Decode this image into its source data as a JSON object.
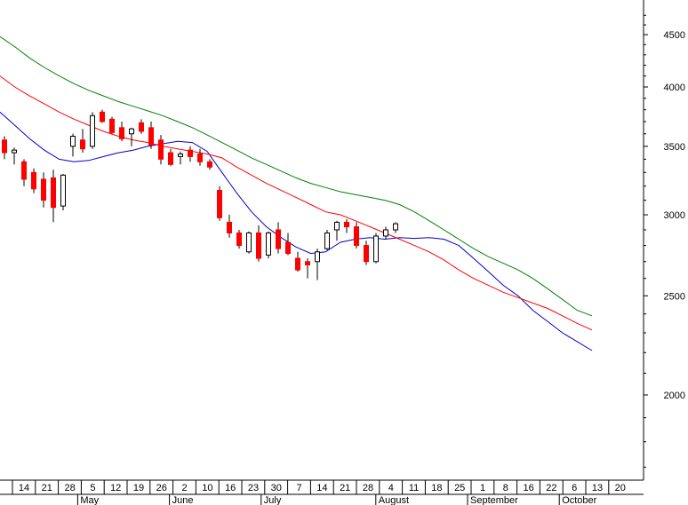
{
  "chart_data": {
    "type": "candlestick",
    "y_axis": {
      "position": "right",
      "scale": "log",
      "ticks": [
        2000,
        2500,
        3000,
        3500,
        4000,
        4500
      ],
      "tick_labels": [
        "2000",
        "2500",
        "3000",
        "3500",
        "4000",
        "4500"
      ],
      "range": [
        1650,
        4800
      ]
    },
    "x_axis": {
      "day_labels": [
        "14",
        "21",
        "28",
        "5",
        "12",
        "19",
        "26",
        "2",
        "10",
        "16",
        "23",
        "30",
        "7",
        "14",
        "21",
        "28",
        "4",
        "11",
        "18",
        "25",
        "1",
        "8",
        "16",
        "22",
        "6",
        "13",
        "20"
      ],
      "month_labels": [
        "May",
        "June",
        "July",
        "August",
        "September",
        "October"
      ],
      "month_label_tick_index": [
        3,
        7,
        11,
        16,
        20,
        24
      ]
    },
    "colors": {
      "up_candle": "#ffffff",
      "down_candle": "#ff0000",
      "ma_short": "#0000cc",
      "ma_mid": "#ff0000",
      "ma_long": "#008000"
    },
    "moving_averages": [
      {
        "color_key": "ma_short",
        "values": [
          3780,
          3670,
          3560,
          3470,
          3400,
          3380,
          3390,
          3420,
          3450,
          3470,
          3500,
          3520,
          3540,
          3530,
          3460,
          3300,
          3150,
          3020,
          2920,
          2850,
          2790,
          2750,
          2760,
          2820,
          2840,
          2850,
          2840,
          2850,
          2845,
          2850,
          2840,
          2800,
          2720,
          2640,
          2560,
          2500,
          2420,
          2360,
          2300,
          2255,
          2210
        ]
      },
      {
        "color_key": "ma_mid",
        "values": [
          4100,
          4000,
          3920,
          3850,
          3780,
          3720,
          3670,
          3620,
          3580,
          3550,
          3530,
          3500,
          3480,
          3460,
          3440,
          3410,
          3340,
          3280,
          3220,
          3170,
          3120,
          3070,
          3020,
          3000,
          2960,
          2920,
          2880,
          2840,
          2800,
          2760,
          2710,
          2650,
          2600,
          2560,
          2520,
          2490,
          2460,
          2430,
          2390,
          2350,
          2315
        ]
      },
      {
        "color_key": "ma_long",
        "values": [
          4480,
          4380,
          4270,
          4180,
          4100,
          4030,
          3970,
          3920,
          3870,
          3830,
          3790,
          3750,
          3700,
          3650,
          3590,
          3530,
          3470,
          3410,
          3360,
          3310,
          3260,
          3220,
          3190,
          3160,
          3140,
          3120,
          3100,
          3070,
          3020,
          2960,
          2900,
          2840,
          2780,
          2730,
          2690,
          2650,
          2600,
          2540,
          2480,
          2420,
          2390
        ]
      }
    ],
    "candles": [
      [
        3550,
        3580,
        3400,
        3450
      ],
      [
        3450,
        3490,
        3360,
        3470
      ],
      [
        3380,
        3400,
        3200,
        3250
      ],
      [
        3300,
        3330,
        3150,
        3180
      ],
      [
        3250,
        3300,
        3050,
        3100
      ],
      [
        3260,
        3320,
        2950,
        3050
      ],
      [
        3060,
        3290,
        3030,
        3280
      ],
      [
        3500,
        3600,
        3420,
        3580
      ],
      [
        3550,
        3640,
        3450,
        3480
      ],
      [
        3500,
        3780,
        3480,
        3750
      ],
      [
        3780,
        3800,
        3690,
        3700
      ],
      [
        3720,
        3740,
        3600,
        3610
      ],
      [
        3650,
        3700,
        3540,
        3560
      ],
      [
        3600,
        3650,
        3500,
        3640
      ],
      [
        3690,
        3720,
        3600,
        3620
      ],
      [
        3650,
        3700,
        3480,
        3510
      ],
      [
        3550,
        3590,
        3360,
        3400
      ],
      [
        3450,
        3480,
        3350,
        3360
      ],
      [
        3420,
        3460,
        3360,
        3440
      ],
      [
        3470,
        3500,
        3380,
        3420
      ],
      [
        3440,
        3480,
        3350,
        3380
      ],
      [
        3380,
        3400,
        3320,
        3340
      ],
      [
        3170,
        3200,
        2960,
        2980
      ],
      [
        2950,
        3000,
        2850,
        2880
      ],
      [
        2880,
        2900,
        2780,
        2800
      ],
      [
        2760,
        2890,
        2750,
        2880
      ],
      [
        2880,
        2930,
        2700,
        2720
      ],
      [
        2740,
        2890,
        2720,
        2880
      ],
      [
        2900,
        2950,
        2750,
        2780
      ],
      [
        2820,
        2880,
        2740,
        2750
      ],
      [
        2720,
        2760,
        2640,
        2650
      ],
      [
        2700,
        2720,
        2600,
        2680
      ],
      [
        2700,
        2780,
        2590,
        2760
      ],
      [
        2780,
        2900,
        2770,
        2880
      ],
      [
        2900,
        2960,
        2830,
        2950
      ],
      [
        2950,
        2970,
        2880,
        2920
      ],
      [
        2920,
        2950,
        2780,
        2800
      ],
      [
        2800,
        2830,
        2680,
        2700
      ],
      [
        2700,
        2880,
        2690,
        2860
      ],
      [
        2860,
        2920,
        2840,
        2900
      ],
      [
        2900,
        2950,
        2880,
        2940
      ]
    ]
  }
}
